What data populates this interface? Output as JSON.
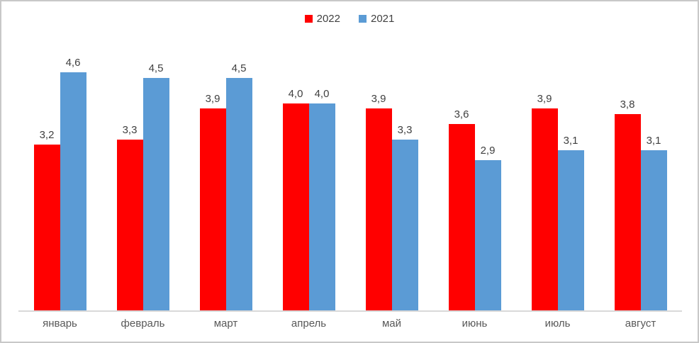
{
  "chart_data": {
    "type": "bar",
    "title": "",
    "xlabel": "",
    "ylabel": "",
    "categories": [
      "январь",
      "февраль",
      "март",
      "апрель",
      "май",
      "июнь",
      "июль",
      "август"
    ],
    "series": [
      {
        "name": "2022",
        "color": "#FF0000",
        "values": [
          3.2,
          3.3,
          3.9,
          4.0,
          3.9,
          3.6,
          3.9,
          3.8
        ],
        "labels": [
          "3,2",
          "3,3",
          "3,9",
          "4,0",
          "3,9",
          "3,6",
          "3,9",
          "3,8"
        ]
      },
      {
        "name": "2021",
        "color": "#5B9BD5",
        "values": [
          4.6,
          4.5,
          4.5,
          4.0,
          3.3,
          2.9,
          3.1,
          3.1
        ],
        "labels": [
          "4,6",
          "4,5",
          "4,5",
          "4,0",
          "3,3",
          "2,9",
          "3,1",
          "3,1"
        ]
      }
    ],
    "ylim": [
      0,
      5
    ],
    "grid": false,
    "legend_position": "top",
    "decimal_separator": ","
  },
  "legend": {
    "items": [
      {
        "label": "2022",
        "color": "#FF0000"
      },
      {
        "label": "2021",
        "color": "#5B9BD5"
      }
    ]
  },
  "style": {
    "background": "#FFFFFF",
    "frame_border_color": "#C8C8C8",
    "axis_line_color": "#D9D9D9",
    "data_label_color": "#404040",
    "axis_label_color": "#595959"
  }
}
